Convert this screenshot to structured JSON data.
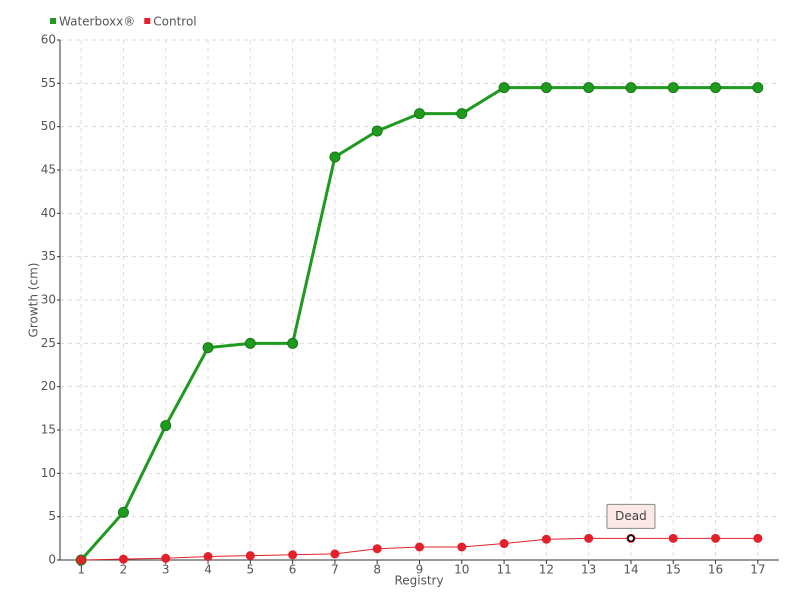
{
  "chart_data": {
    "type": "line",
    "categories": [
      "1",
      "2",
      "3",
      "4",
      "5",
      "6",
      "7",
      "8",
      "9",
      "10",
      "11",
      "12",
      "13",
      "14",
      "15",
      "16",
      "17"
    ],
    "series": [
      {
        "name": "Waterboxx®",
        "color": "#1e9a1e",
        "values": [
          0,
          5.5,
          15.5,
          24.5,
          25,
          25,
          46.5,
          49.5,
          51.5,
          51.5,
          54.5,
          54.5,
          54.5,
          54.5,
          54.5,
          54.5,
          54.5
        ]
      },
      {
        "name": "Control",
        "color": "#e3202b",
        "values": [
          0,
          0.1,
          0.2,
          0.4,
          0.5,
          0.6,
          0.7,
          1.3,
          1.5,
          1.5,
          1.9,
          2.4,
          2.5,
          2.5,
          2.5,
          2.5,
          2.5
        ]
      }
    ],
    "ylim": [
      0,
      60
    ],
    "yticks": [
      0,
      5,
      10,
      15,
      20,
      25,
      30,
      35,
      40,
      45,
      50,
      55,
      60
    ],
    "y_label": "Growth (cm)",
    "x_label": "Registry",
    "annotations": [
      {
        "text": "Dead",
        "series": 1,
        "index": 13
      }
    ],
    "grid": true,
    "legend": "top-left"
  }
}
